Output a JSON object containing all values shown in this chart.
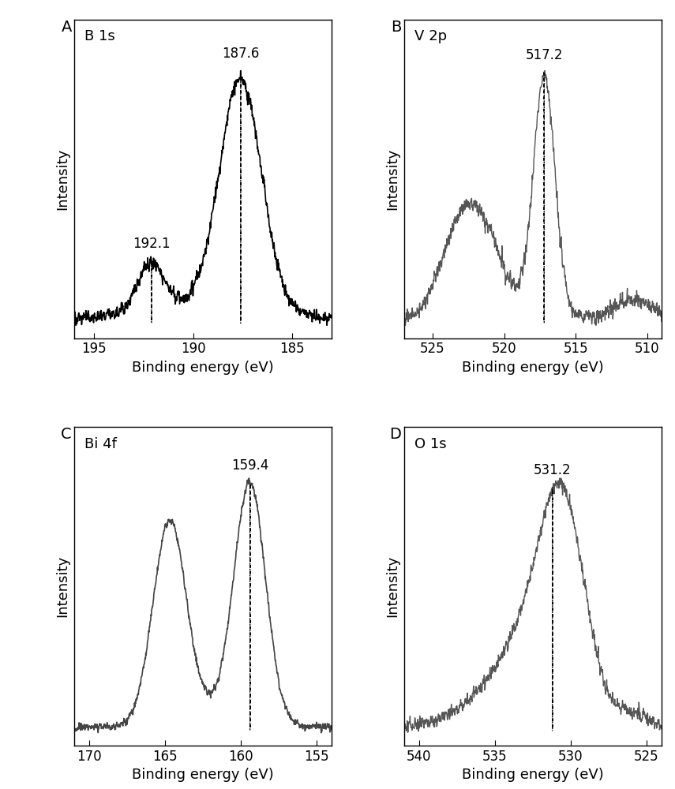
{
  "panels": [
    {
      "label": "A",
      "title": "B 1s",
      "xmin": 183,
      "xmax": 196,
      "xticks": [
        195,
        190,
        185
      ],
      "xlabel": "Binding energy (eV)",
      "ylabel": "Intensity",
      "line_color": "#000000",
      "line_width": 1.2,
      "annotations": [
        {
          "x": 187.6,
          "label": "187.6"
        },
        {
          "x": 192.1,
          "label": "192.1"
        }
      ]
    },
    {
      "label": "B",
      "title": "V 2p",
      "xmin": 509,
      "xmax": 527,
      "xticks": [
        525,
        520,
        515,
        510
      ],
      "xlabel": "Binding energy (eV)",
      "ylabel": "Intensity",
      "line_color": "#555555",
      "line_width": 1.0,
      "annotations": [
        {
          "x": 517.2,
          "label": "517.2"
        }
      ]
    },
    {
      "label": "C",
      "title": "Bi 4f",
      "xmin": 154,
      "xmax": 171,
      "xticks": [
        170,
        165,
        160,
        155
      ],
      "xlabel": "Binding energy (eV)",
      "ylabel": "Intensity",
      "line_color": "#444444",
      "line_width": 1.2,
      "annotations": [
        {
          "x": 159.4,
          "label": "159.4"
        }
      ]
    },
    {
      "label": "D",
      "title": "O 1s",
      "xmin": 524,
      "xmax": 541,
      "xticks": [
        540,
        535,
        530,
        525
      ],
      "xlabel": "Binding energy (eV)",
      "ylabel": "Intensity",
      "line_color": "#555555",
      "line_width": 1.0,
      "annotations": [
        {
          "x": 531.2,
          "label": "531.2"
        }
      ]
    }
  ],
  "background_color": "#ffffff",
  "spine_color": "#000000",
  "label_fontsize": 13,
  "tick_fontsize": 12,
  "annotation_fontsize": 12,
  "panel_label_fontsize": 14,
  "title_fontsize": 13
}
